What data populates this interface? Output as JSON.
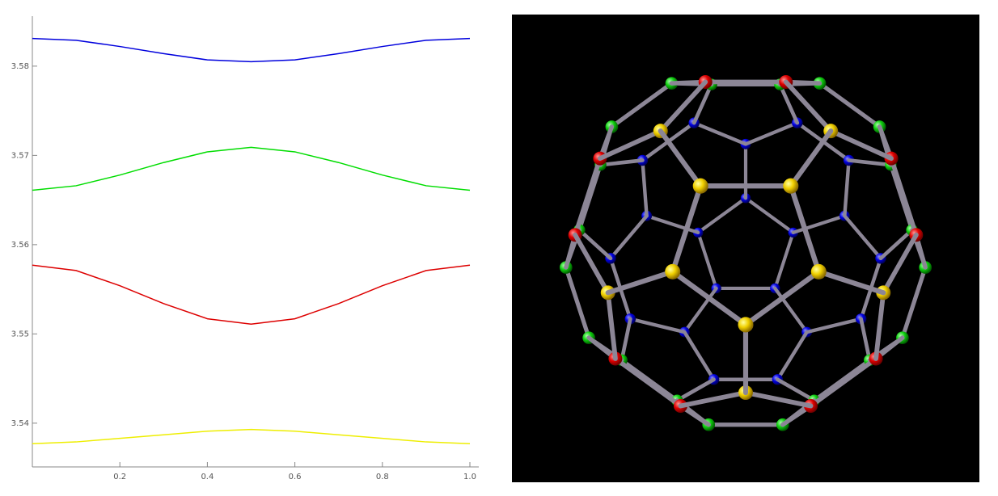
{
  "chart_data": {
    "type": "line",
    "x": [
      0,
      0.1,
      0.2,
      0.3,
      0.4,
      0.5,
      0.6,
      0.7,
      0.8,
      0.9,
      1
    ],
    "series": [
      {
        "color": "#0000dd",
        "values": [
          3.5831,
          3.5829,
          3.5822,
          3.5814,
          3.5807,
          3.5805,
          3.5807,
          3.5814,
          3.5822,
          3.5829,
          3.5831
        ]
      },
      {
        "color": "#00dd00",
        "values": [
          3.5661,
          3.5666,
          3.5678,
          3.5692,
          3.5704,
          3.5709,
          3.5704,
          3.5692,
          3.5678,
          3.5666,
          3.5661
        ]
      },
      {
        "color": "#dd0000",
        "values": [
          3.5577,
          3.5571,
          3.5554,
          3.5534,
          3.5517,
          3.5511,
          3.5517,
          3.5534,
          3.5554,
          3.5571,
          3.5577
        ]
      },
      {
        "color": "#eeee00",
        "values": [
          3.5377,
          3.5379,
          3.5383,
          3.5387,
          3.5391,
          3.5393,
          3.5391,
          3.5387,
          3.5383,
          3.5379,
          3.5377
        ]
      }
    ],
    "xlim": [
      0,
      1
    ],
    "xticks": [
      0.2,
      0.4,
      0.6,
      0.8,
      {
        "value": 1,
        "label": "1.0"
      }
    ],
    "ylim": [
      3.5351,
      3.5856
    ],
    "yticks": [
      3.54,
      3.55,
      3.56,
      3.57,
      3.58
    ],
    "grid": false
  }
}
